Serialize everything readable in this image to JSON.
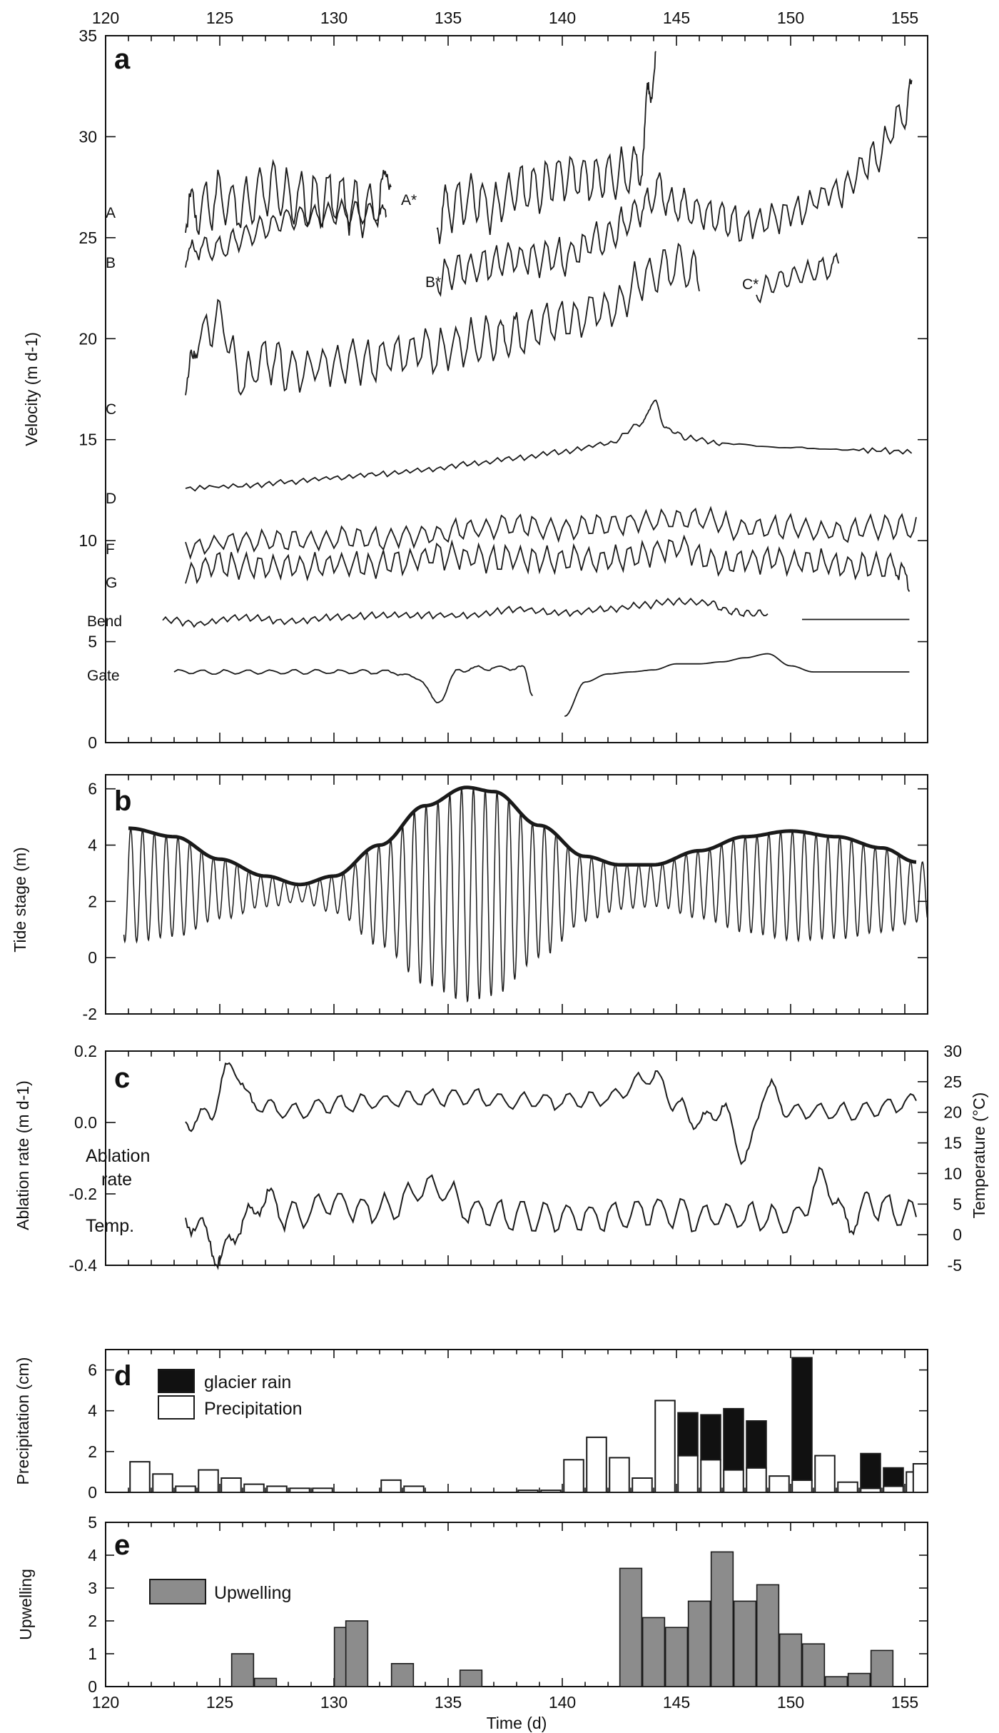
{
  "chart_data": [
    {
      "panel": "a",
      "type": "line",
      "panel_label": "a",
      "ylabel": "Velocity (m d-1)",
      "xlim": [
        120,
        156
      ],
      "ylim": [
        0,
        35
      ],
      "x_ticks_top": [
        "120",
        "125",
        "130",
        "135",
        "140",
        "145",
        "150",
        "155"
      ],
      "y_ticks": [
        "0",
        "5",
        "10",
        "15",
        "20",
        "25",
        "30",
        "35"
      ],
      "series": [
        {
          "name": "A",
          "x": [
            123.5,
            124,
            125,
            126,
            127,
            128,
            129,
            130,
            131,
            132,
            132.5
          ],
          "y": [
            26,
            26.5,
            27,
            26.5,
            27.5,
            27,
            26.8,
            27,
            26.5,
            26.8,
            28.7
          ]
        },
        {
          "name": "A*",
          "x": [
            134.5,
            135,
            136,
            137,
            138,
            139,
            140,
            141,
            142,
            143,
            143.5,
            143.8,
            144.1
          ],
          "y": [
            26,
            26.5,
            27,
            26.5,
            27.5,
            27.5,
            28,
            28,
            28,
            28.2,
            29,
            32,
            34.3
          ]
        },
        {
          "name": "B",
          "x": [
            123.5,
            124,
            125,
            126,
            127,
            128,
            129,
            130,
            131,
            132,
            132.3
          ],
          "y": [
            24,
            24.5,
            24.5,
            25,
            25.5,
            26,
            26,
            26.3,
            26.2,
            26.2,
            26
          ]
        },
        {
          "name": "B*",
          "x": [
            134.5,
            135.5,
            137,
            138.5,
            140,
            141.5,
            142.5,
            143.5,
            144.2,
            145,
            145.8,
            147,
            148,
            150,
            152,
            153.5,
            155,
            155.3
          ],
          "y": [
            23,
            23.4,
            23.8,
            24,
            24.1,
            24.8,
            25.5,
            26.5,
            27.3,
            26.6,
            26.3,
            25.9,
            25.6,
            26.2,
            27.3,
            28.8,
            31,
            32
          ]
        },
        {
          "name": "C",
          "x": [
            123.5,
            124,
            125,
            126,
            127,
            128,
            130,
            132,
            134,
            136,
            137.3,
            138,
            140,
            142,
            144,
            145,
            146
          ],
          "y": [
            17,
            20,
            21,
            18,
            19,
            18.5,
            18.8,
            19,
            19.4,
            19.8,
            20,
            20.2,
            20.9,
            21.5,
            23.3,
            23.5,
            23
          ]
        },
        {
          "name": "C*",
          "x": [
            148.5,
            149.5,
            150.5,
            151.5,
            152.1
          ],
          "y": [
            22.3,
            22.9,
            23.2,
            23.5,
            23.7
          ]
        },
        {
          "name": "D",
          "x": [
            123.5,
            126,
            128,
            130,
            132,
            134,
            136,
            138,
            140,
            142,
            143.5,
            144,
            144.6,
            145.5,
            147,
            150,
            153,
            155.3
          ],
          "y": [
            12.6,
            12.7,
            12.9,
            13.1,
            13.3,
            13.5,
            13.8,
            14.1,
            14.4,
            14.8,
            15.8,
            16.9,
            15.5,
            15.1,
            14.8,
            14.6,
            14.5,
            14.4
          ]
        },
        {
          "name": "F",
          "x": [
            123.5,
            126,
            128,
            130,
            132,
            134,
            136,
            138,
            140,
            142,
            144,
            146,
            148,
            150,
            152,
            154,
            155.5
          ],
          "y": [
            9.7,
            10,
            10.1,
            10.1,
            10.1,
            10.3,
            10.6,
            10.8,
            10.6,
            10.8,
            11,
            11.1,
            10.6,
            10.7,
            10.4,
            10.7,
            10.7
          ]
        },
        {
          "name": "G",
          "x": [
            123.5,
            125,
            127,
            129,
            131,
            133,
            135,
            137,
            139,
            141,
            143,
            145,
            147,
            149,
            151,
            153,
            154.5,
            155.2
          ],
          "y": [
            8.3,
            8.8,
            8.8,
            8.8,
            8.8,
            8.9,
            9.3,
            9.1,
            9.1,
            9.1,
            9.2,
            9.7,
            8.8,
            9.1,
            8.9,
            8.7,
            8.8,
            8.0
          ]
        },
        {
          "name": "Bend",
          "x": [
            122.5,
            124,
            126,
            128,
            130,
            132,
            134,
            136,
            138,
            140,
            142,
            143.5,
            145,
            146.5,
            147.3,
            148,
            149
          ],
          "y": [
            6.1,
            5.9,
            6.2,
            6.0,
            6.2,
            6.3,
            6.3,
            6.3,
            6.6,
            6.4,
            6.6,
            6.8,
            7.0,
            6.9,
            6.5,
            6.4,
            6.4
          ]
        },
        {
          "name": "Bend",
          "x": [
            150.5,
            152,
            153.5,
            155.2
          ],
          "y": [
            6.1,
            6.1,
            6.1,
            6.1
          ]
        },
        {
          "name": "Gate",
          "x": [
            123,
            125,
            127,
            129,
            131,
            132.5,
            133.7,
            134.5,
            135.5,
            136.5,
            137.5,
            138.3,
            138.7
          ],
          "y": [
            3.5,
            3.5,
            3.5,
            3.5,
            3.5,
            3.5,
            3.2,
            2.0,
            3.6,
            3.7,
            3.7,
            3.7,
            2.4
          ]
        },
        {
          "name": "Gate",
          "x": [
            140.1,
            141,
            142,
            143,
            144,
            145,
            146,
            147,
            148,
            149,
            150,
            151,
            152,
            153,
            154,
            155.2
          ],
          "y": [
            1.3,
            3.0,
            3.4,
            3.5,
            3.6,
            3.9,
            3.9,
            4.0,
            4.2,
            4.4,
            3.8,
            3.5,
            3.5,
            3.5,
            3.5,
            3.5
          ]
        }
      ]
    },
    {
      "panel": "b",
      "type": "line",
      "panel_label": "b",
      "ylabel": "Tide stage (m)",
      "xlim": [
        120,
        156
      ],
      "ylim": [
        -2,
        6.5
      ],
      "y_ticks": [
        "-2",
        "0",
        "2",
        "4",
        "6"
      ],
      "tidal_signal": {
        "period_d": 0.5175,
        "x_range": [
          120.8,
          156
        ]
      },
      "series": [
        {
          "name": "",
          "x": [
            121,
            123,
            125,
            127,
            128.5,
            130,
            132,
            134,
            135.8,
            137,
            139,
            141,
            142.5,
            144,
            146,
            148,
            150,
            152,
            154,
            155.5
          ],
          "y": [
            4.6,
            4.3,
            3.5,
            2.9,
            2.6,
            2.9,
            4.0,
            5.4,
            6.05,
            5.9,
            4.7,
            3.6,
            3.3,
            3.3,
            3.8,
            4.3,
            4.5,
            4.3,
            3.9,
            3.4
          ]
        }
      ]
    },
    {
      "panel": "c",
      "type": "line",
      "panel_label": "c",
      "ylabel": "Ablation rate (m d-1)",
      "ylabel_right": "Temperature (°C)",
      "xlim": [
        120,
        156
      ],
      "ylim": [
        -0.4,
        0.2
      ],
      "ylim_right": [
        -5,
        30
      ],
      "y_ticks": [
        "-0.4",
        "-0.2",
        "0.0",
        "0.2"
      ],
      "y_ticks_right": [
        "-5",
        "0",
        "5",
        "10",
        "15",
        "20",
        "25",
        "30"
      ],
      "annotations": [
        "Ablation",
        "rate",
        "Temp."
      ],
      "series": [
        {
          "name": "Ablation rate",
          "x": [
            123.5,
            124.5,
            125.5,
            126.5,
            128,
            130,
            132,
            134,
            136,
            138,
            140,
            142,
            144,
            145,
            146,
            147,
            148,
            149,
            150,
            152,
            154,
            155.5
          ],
          "y": [
            0.0,
            0.02,
            0.16,
            0.05,
            0.03,
            0.05,
            0.06,
            0.07,
            0.07,
            0.06,
            0.06,
            0.07,
            0.13,
            0.05,
            0.0,
            0.04,
            -0.1,
            0.1,
            0.03,
            0.03,
            0.04,
            0.06
          ]
        },
        {
          "name": "Temp.",
          "x": [
            123.5,
            124.5,
            125,
            126,
            127,
            128,
            130,
            132,
            134.5,
            136,
            138,
            140,
            142,
            144,
            146,
            148,
            150,
            151.5,
            152.5,
            153.5,
            155.5
          ],
          "y": [
            3,
            0,
            -4,
            2,
            6,
            3,
            5,
            4,
            8,
            4,
            3,
            3,
            3,
            4,
            3,
            3,
            2,
            9,
            2,
            5,
            3
          ]
        }
      ]
    },
    {
      "panel": "d",
      "type": "bar",
      "panel_label": "d",
      "ylabel": "Precipitation (cm)",
      "xlim": [
        120,
        156
      ],
      "ylim": [
        0,
        7
      ],
      "y_ticks": [
        "0",
        "2",
        "4",
        "6"
      ],
      "x": [
        121.5,
        122.5,
        123.5,
        124.5,
        125.5,
        126.5,
        127.5,
        128.5,
        129.5,
        132.5,
        133.5,
        138.5,
        139.5,
        140.5,
        141.5,
        142.5,
        143.5,
        144.5,
        145.5,
        146.5,
        147.5,
        148.5,
        149.5,
        150.5,
        151.5,
        152.5,
        153.5,
        154.5,
        155.5
      ],
      "series": [
        {
          "name": "Precipitation",
          "values": [
            1.5,
            0.9,
            0.3,
            1.1,
            0.7,
            0.4,
            0.3,
            0.2,
            0.2,
            0.6,
            0.3,
            0.1,
            0.1,
            1.6,
            2.7,
            1.7,
            0.7,
            4.5,
            1.8,
            1.6,
            1.1,
            1.2,
            0.8,
            0.6,
            1.8,
            0.5,
            0.2,
            0.3,
            1.0
          ]
        },
        {
          "name": "glacier rain",
          "values": [
            0,
            0,
            0,
            0,
            0,
            0,
            0,
            0,
            0,
            0,
            0,
            0,
            0,
            0,
            0,
            0,
            0,
            0,
            2.1,
            2.2,
            3.0,
            2.3,
            0,
            6.0,
            0,
            0,
            1.7,
            0.9,
            0
          ]
        },
        {
          "name": "Precipitation",
          "x": [
            155.8
          ],
          "values": [
            1.4
          ]
        }
      ],
      "legend": [
        "glacier rain",
        "Precipitation"
      ]
    },
    {
      "panel": "e",
      "type": "bar",
      "panel_label": "e",
      "ylabel": "Upwelling",
      "xlabel": "Time (d)",
      "xlim": [
        120,
        156
      ],
      "ylim": [
        0,
        5
      ],
      "y_ticks": [
        "0",
        "1",
        "2",
        "3",
        "4",
        "5"
      ],
      "x_ticks": [
        "120",
        "125",
        "130",
        "135",
        "140",
        "145",
        "150",
        "155"
      ],
      "x": [
        126,
        127,
        130.5,
        131,
        133,
        136,
        143,
        144,
        145,
        146,
        147,
        148,
        149,
        150,
        151,
        152,
        153,
        154
      ],
      "values": [
        1.0,
        0.25,
        1.8,
        2.0,
        0.7,
        0.5,
        3.6,
        2.1,
        1.8,
        2.6,
        4.1,
        2.6,
        3.1,
        1.6,
        1.3,
        0.3,
        0.4,
        1.1
      ],
      "series": [
        {
          "name": "Upwelling"
        }
      ]
    }
  ],
  "colors": {
    "line": "#1a1a1a",
    "upwelling_fill": "#8c8c8c",
    "glacier_rain_fill": "#111111",
    "precipitation_fill": "#ffffff"
  }
}
